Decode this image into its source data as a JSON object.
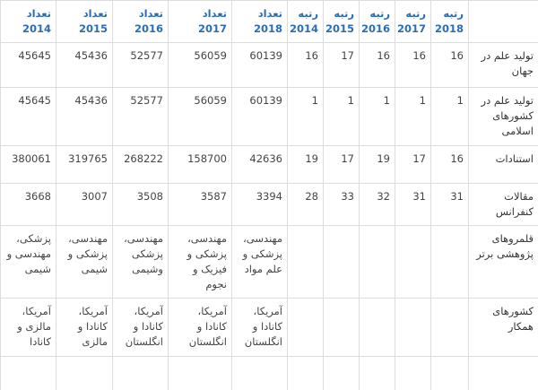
{
  "table": {
    "header": [
      null,
      "رتبه 2018",
      "رتبه 2017",
      "رتبه 2016",
      "رتبه 2015",
      "رتبه 2014",
      "تعداد 2018",
      "تعداد 2017",
      "تعداد 2016",
      "تعداد 2015",
      "تعداد 2014"
    ],
    "rows": [
      [
        "تولید علم در جهان",
        16,
        16,
        16,
        17,
        16,
        60139,
        56059,
        52577,
        45436,
        45645
      ],
      [
        "تولید علم در کشورهای اسلامی",
        1,
        1,
        1,
        1,
        1,
        60139,
        56059,
        52577,
        45436,
        45645
      ],
      [
        "استنادات",
        16,
        17,
        19,
        17,
        19,
        42636,
        158700,
        268222,
        319765,
        380061
      ],
      [
        "مقالات کنفرانس",
        31,
        31,
        32,
        33,
        28,
        3394,
        3587,
        3508,
        3007,
        3668
      ],
      [
        "قلمروهای پژوهشی برتر",
        null,
        null,
        null,
        null,
        null,
        "مهندسی، پزشکی و علم مواد",
        "مهندسی، پزشکی و فیزیک و نجوم",
        "مهندسی، پزشکی وشیمی",
        "مهندسی، پزشکی و شیمی",
        "پزشکی، مهندسی و شیمی"
      ],
      [
        "کشورهای همکار",
        null,
        null,
        null,
        null,
        null,
        "آمریکا، کانادا و انگلستان",
        "آمریکا، کانادا و انگلستان",
        "آمریکا، کانادا و انگلستان",
        "آمریکا، کانادا و مالزی",
        "آمریکا، مالزی و کانادا"
      ],
      [
        null,
        null,
        null,
        null,
        null,
        null,
        null,
        null,
        null,
        null,
        null
      ]
    ]
  }
}
